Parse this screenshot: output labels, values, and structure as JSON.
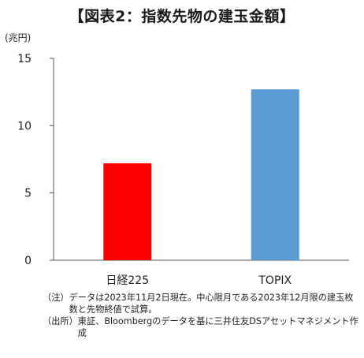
{
  "title": "【図表2：指数先物の建玉金額】",
  "chart_data": {
    "type": "bar",
    "categories": [
      "日経225",
      "TOPIX"
    ],
    "values": [
      7.2,
      12.7
    ],
    "colors": [
      "#ff0000",
      "#5b9bd5"
    ],
    "ylabel": "(兆円)",
    "ylim": [
      0,
      15
    ],
    "yticks": [
      0,
      5,
      10,
      15
    ],
    "grid": false
  },
  "notes": [
    {
      "key": "（注）",
      "text": "データは2023年11月2日現在。中心限月である2023年12月限の建玉枚数と先物終値で試算。"
    },
    {
      "key": "（出所）",
      "text": "東証、Bloombergのデータを基に三井住友DSアセットマネジメント作成"
    }
  ]
}
